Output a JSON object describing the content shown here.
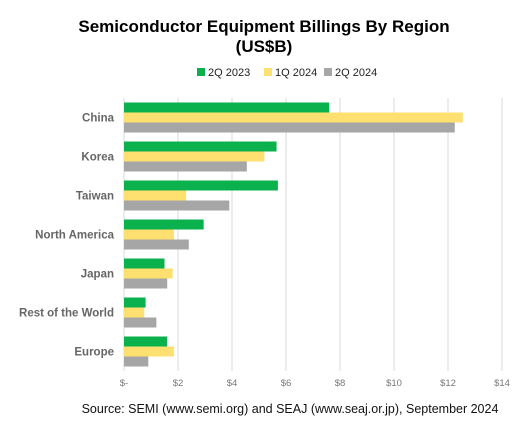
{
  "colors": {
    "series": [
      "#0ab14d",
      "#fde070",
      "#a6a6a6"
    ],
    "grid": "#d9d9d9"
  },
  "chart_data": {
    "type": "bar",
    "orientation": "horizontal",
    "title_line1": "Semiconductor Equipment Billings By Region",
    "title_line2": "(US$B)",
    "categories": [
      "China",
      "Korea",
      "Taiwan",
      "North America",
      "Japan",
      "Rest of the World",
      "Europe"
    ],
    "series": [
      {
        "name": "2Q 2023",
        "values": [
          7.6,
          5.65,
          5.7,
          2.95,
          1.5,
          0.8,
          1.6
        ]
      },
      {
        "name": "1Q 2024",
        "values": [
          12.55,
          5.2,
          2.3,
          1.85,
          1.8,
          0.75,
          1.85
        ]
      },
      {
        "name": "2Q 2024",
        "values": [
          12.25,
          4.55,
          3.9,
          2.4,
          1.6,
          1.2,
          0.9
        ]
      }
    ],
    "xlim": [
      0,
      14
    ],
    "tick_values": [
      0,
      2,
      4,
      6,
      8,
      10,
      12,
      14
    ],
    "tick_labels": [
      "$-",
      "$2",
      "$4",
      "$6",
      "$8",
      "$10",
      "$12",
      "$14"
    ],
    "grid": true,
    "legend_position": "top",
    "source": "Source: SEMI (www.semi.org) and SEAJ (www.seaj.or.jp), September 2024"
  }
}
